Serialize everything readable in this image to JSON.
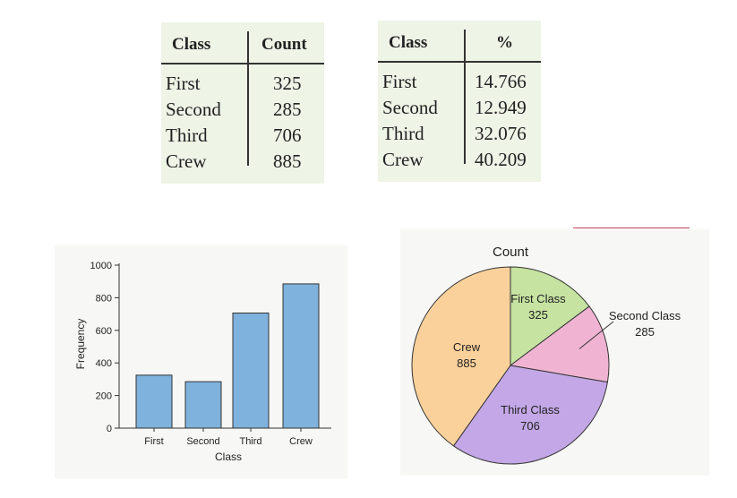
{
  "count_table": {
    "headers": [
      "Class",
      "Count"
    ],
    "rows": [
      {
        "label": "First",
        "value": "325"
      },
      {
        "label": "Second",
        "value": "285"
      },
      {
        "label": "Third",
        "value": "706"
      },
      {
        "label": "Crew",
        "value": "885"
      }
    ]
  },
  "percent_table": {
    "headers": [
      "Class",
      "%"
    ],
    "rows": [
      {
        "label": "First",
        "value": "14.766"
      },
      {
        "label": "Second",
        "value": "12.949"
      },
      {
        "label": "Third",
        "value": "32.076"
      },
      {
        "label": "Crew",
        "value": "40.209"
      }
    ]
  },
  "chart_data": [
    {
      "type": "bar",
      "categories": [
        "First",
        "Second",
        "Third",
        "Crew"
      ],
      "values": [
        325,
        285,
        706,
        885
      ],
      "xlabel": "Class",
      "ylabel": "Frequency",
      "ylim": [
        0,
        1000
      ],
      "yticks": [
        0,
        200,
        400,
        600,
        800,
        1000
      ],
      "bar_color": "#7fb2dd",
      "grid": false
    },
    {
      "type": "pie",
      "title": "Count",
      "slices": [
        {
          "label": "First Class",
          "value": 325,
          "color": "#c6e3a1"
        },
        {
          "label": "Second Class",
          "value": 285,
          "color": "#f0b4d2"
        },
        {
          "label": "Third Class",
          "value": 706,
          "color": "#c3a7e6"
        },
        {
          "label": "Crew",
          "value": 885,
          "color": "#fbd19b"
        }
      ]
    }
  ]
}
